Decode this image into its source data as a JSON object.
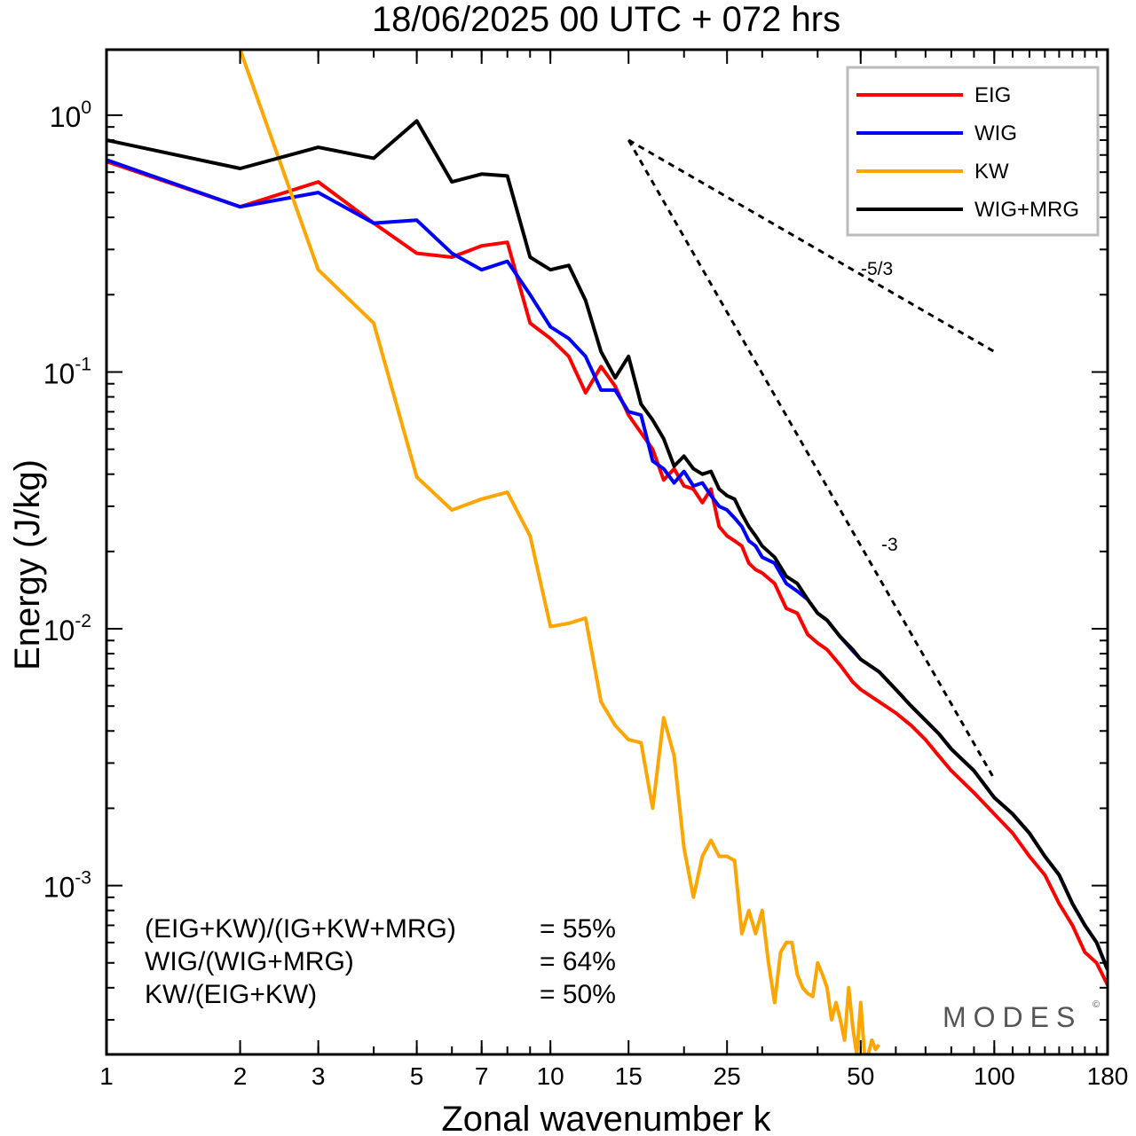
{
  "chart_data": {
    "type": "line",
    "title": "18/06/2025  00 UTC  + 072 hrs",
    "xlabel": "Zonal wavenumber k",
    "ylabel": "Energy (J/kg)",
    "xscale": "log",
    "yscale": "log",
    "xlim": [
      1,
      180
    ],
    "ylim": [
      0.00022,
      1.8
    ],
    "x_ticks": [
      1,
      2,
      3,
      5,
      7,
      10,
      15,
      25,
      50,
      100,
      180
    ],
    "y_ticks": [
      {
        "base": "10",
        "exp": "0",
        "value": 1
      },
      {
        "base": "10",
        "exp": "-1",
        "value": 0.1
      },
      {
        "base": "10",
        "exp": "-2",
        "value": 0.01
      },
      {
        "base": "10",
        "exp": "-3",
        "value": 0.001
      }
    ],
    "legend_position": "top-right",
    "grid": false,
    "series": [
      {
        "name": "EIG",
        "color": "#ff0000",
        "points": [
          [
            1,
            0.66
          ],
          [
            2,
            0.44
          ],
          [
            3,
            0.55
          ],
          [
            4,
            0.38
          ],
          [
            5,
            0.29
          ],
          [
            6,
            0.28
          ],
          [
            7,
            0.31
          ],
          [
            8,
            0.32
          ],
          [
            9,
            0.155
          ],
          [
            10,
            0.135
          ],
          [
            11,
            0.115
          ],
          [
            12,
            0.083
          ],
          [
            13,
            0.105
          ],
          [
            14,
            0.088
          ],
          [
            15,
            0.068
          ],
          [
            16,
            0.058
          ],
          [
            17,
            0.05
          ],
          [
            18,
            0.038
          ],
          [
            19,
            0.042
          ],
          [
            20,
            0.036
          ],
          [
            21,
            0.035
          ],
          [
            22,
            0.031
          ],
          [
            23,
            0.035
          ],
          [
            24,
            0.025
          ],
          [
            25,
            0.023
          ],
          [
            26,
            0.022
          ],
          [
            27,
            0.021
          ],
          [
            28,
            0.018
          ],
          [
            29,
            0.017
          ],
          [
            30,
            0.0165
          ],
          [
            32,
            0.015
          ],
          [
            34,
            0.012
          ],
          [
            36,
            0.0115
          ],
          [
            38,
            0.0095
          ],
          [
            40,
            0.0088
          ],
          [
            42,
            0.0083
          ],
          [
            45,
            0.0072
          ],
          [
            48,
            0.0062
          ],
          [
            50,
            0.0058
          ],
          [
            55,
            0.0052
          ],
          [
            60,
            0.0047
          ],
          [
            65,
            0.0042
          ],
          [
            70,
            0.0037
          ],
          [
            75,
            0.0032
          ],
          [
            80,
            0.0028
          ],
          [
            90,
            0.0023
          ],
          [
            100,
            0.0019
          ],
          [
            110,
            0.0016
          ],
          [
            120,
            0.0013
          ],
          [
            130,
            0.0011
          ],
          [
            140,
            0.00085
          ],
          [
            150,
            0.0007
          ],
          [
            160,
            0.00055
          ],
          [
            170,
            0.0005
          ],
          [
            180,
            0.00041
          ]
        ]
      },
      {
        "name": "WIG",
        "color": "#0000ff",
        "points": [
          [
            1,
            0.67
          ],
          [
            2,
            0.44
          ],
          [
            3,
            0.5
          ],
          [
            4,
            0.38
          ],
          [
            5,
            0.39
          ],
          [
            6,
            0.29
          ],
          [
            7,
            0.25
          ],
          [
            8,
            0.27
          ],
          [
            9,
            0.2
          ],
          [
            10,
            0.15
          ],
          [
            11,
            0.135
          ],
          [
            12,
            0.115
          ],
          [
            13,
            0.085
          ],
          [
            14,
            0.085
          ],
          [
            15,
            0.07
          ],
          [
            16,
            0.068
          ],
          [
            17,
            0.045
          ],
          [
            18,
            0.042
          ],
          [
            19,
            0.037
          ],
          [
            20,
            0.041
          ],
          [
            21,
            0.036
          ],
          [
            22,
            0.037
          ],
          [
            23,
            0.033
          ],
          [
            24,
            0.03
          ],
          [
            25,
            0.029
          ],
          [
            26,
            0.027
          ],
          [
            27,
            0.025
          ],
          [
            28,
            0.022
          ],
          [
            29,
            0.021
          ],
          [
            30,
            0.019
          ],
          [
            32,
            0.018
          ],
          [
            34,
            0.015
          ],
          [
            36,
            0.014
          ],
          [
            38,
            0.013
          ],
          [
            40,
            0.0115
          ],
          [
            42,
            0.0108
          ],
          [
            45,
            0.0093
          ],
          [
            48,
            0.0082
          ],
          [
            50,
            0.0076
          ],
          [
            55,
            0.0068
          ],
          [
            60,
            0.0058
          ],
          [
            65,
            0.005
          ],
          [
            70,
            0.0044
          ],
          [
            75,
            0.0039
          ],
          [
            80,
            0.0034
          ],
          [
            90,
            0.0028
          ],
          [
            100,
            0.0022
          ],
          [
            110,
            0.0019
          ],
          [
            120,
            0.0016
          ],
          [
            130,
            0.0013
          ],
          [
            140,
            0.0011
          ],
          [
            150,
            0.00085
          ],
          [
            160,
            0.0007
          ],
          [
            170,
            0.0006
          ],
          [
            180,
            0.00047
          ]
        ]
      },
      {
        "name": "KW",
        "color": "#ffa500",
        "points": [
          [
            2,
            1.8
          ],
          [
            3,
            0.25
          ],
          [
            4,
            0.155
          ],
          [
            5,
            0.039
          ],
          [
            6,
            0.029
          ],
          [
            7,
            0.032
          ],
          [
            8,
            0.034
          ],
          [
            9,
            0.023
          ],
          [
            10,
            0.0102
          ],
          [
            11,
            0.0105
          ],
          [
            12,
            0.011
          ],
          [
            13,
            0.0052
          ],
          [
            14,
            0.0042
          ],
          [
            15,
            0.0037
          ],
          [
            16,
            0.0036
          ],
          [
            17,
            0.002
          ],
          [
            18,
            0.0045
          ],
          [
            19,
            0.0032
          ],
          [
            20,
            0.0014
          ],
          [
            21,
            0.0009
          ],
          [
            22,
            0.0013
          ],
          [
            23,
            0.0015
          ],
          [
            24,
            0.0013
          ],
          [
            25,
            0.0013
          ],
          [
            26,
            0.00125
          ],
          [
            27,
            0.00065
          ],
          [
            28,
            0.0008
          ],
          [
            29,
            0.00065
          ],
          [
            30,
            0.0008
          ],
          [
            31,
            0.0005
          ],
          [
            32,
            0.00035
          ],
          [
            33,
            0.00055
          ],
          [
            34,
            0.0006
          ],
          [
            35,
            0.0006
          ],
          [
            36,
            0.00045
          ],
          [
            37,
            0.0004
          ],
          [
            38,
            0.00038
          ],
          [
            39,
            0.00037
          ],
          [
            40,
            0.0005
          ],
          [
            41,
            0.00045
          ],
          [
            42,
            0.0004
          ],
          [
            43,
            0.0003
          ],
          [
            44,
            0.00035
          ],
          [
            45,
            0.0003
          ],
          [
            46,
            0.00025
          ],
          [
            47,
            0.0004
          ],
          [
            48,
            0.00028
          ],
          [
            49,
            0.00022
          ],
          [
            50,
            0.00035
          ],
          [
            51,
            0.00022
          ],
          [
            52,
            0.00022
          ],
          [
            53,
            0.00025
          ],
          [
            54,
            0.00023
          ],
          [
            55,
            0.00024
          ]
        ]
      },
      {
        "name": "WIG+MRG",
        "color": "#000000",
        "points": [
          [
            1,
            0.8
          ],
          [
            2,
            0.62
          ],
          [
            3,
            0.75
          ],
          [
            4,
            0.68
          ],
          [
            5,
            0.95
          ],
          [
            6,
            0.55
          ],
          [
            7,
            0.59
          ],
          [
            8,
            0.58
          ],
          [
            9,
            0.28
          ],
          [
            10,
            0.25
          ],
          [
            11,
            0.26
          ],
          [
            12,
            0.19
          ],
          [
            13,
            0.12
          ],
          [
            14,
            0.095
          ],
          [
            15,
            0.115
          ],
          [
            16,
            0.075
          ],
          [
            17,
            0.065
          ],
          [
            18,
            0.055
          ],
          [
            19,
            0.043
          ],
          [
            20,
            0.047
          ],
          [
            21,
            0.042
          ],
          [
            22,
            0.04
          ],
          [
            23,
            0.041
          ],
          [
            24,
            0.035
          ],
          [
            25,
            0.033
          ],
          [
            26,
            0.032
          ],
          [
            27,
            0.028
          ],
          [
            28,
            0.025
          ],
          [
            29,
            0.023
          ],
          [
            30,
            0.021
          ],
          [
            32,
            0.019
          ],
          [
            34,
            0.016
          ],
          [
            36,
            0.015
          ],
          [
            38,
            0.013
          ],
          [
            40,
            0.0115
          ],
          [
            42,
            0.0108
          ],
          [
            45,
            0.0093
          ],
          [
            48,
            0.0083
          ],
          [
            50,
            0.0076
          ],
          [
            55,
            0.0068
          ],
          [
            60,
            0.0058
          ],
          [
            65,
            0.005
          ],
          [
            70,
            0.0044
          ],
          [
            75,
            0.0039
          ],
          [
            80,
            0.0034
          ],
          [
            90,
            0.0028
          ],
          [
            100,
            0.0022
          ],
          [
            110,
            0.0019
          ],
          [
            120,
            0.0016
          ],
          [
            130,
            0.0013
          ],
          [
            140,
            0.0011
          ],
          [
            150,
            0.00085
          ],
          [
            160,
            0.0007
          ],
          [
            170,
            0.0006
          ],
          [
            180,
            0.00047
          ]
        ]
      }
    ],
    "reference_lines": [
      {
        "label": "-5/3",
        "x": [
          15,
          100
        ],
        "y": [
          0.8,
          0.12
        ]
      },
      {
        "label": "-3",
        "x": [
          15,
          100
        ],
        "y": [
          0.8,
          0.0026
        ]
      }
    ],
    "annotations": [
      {
        "text": "(EIG+KW)/(IG+KW+MRG)",
        "value": "= 55%"
      },
      {
        "text": "WIG/(WIG+MRG)",
        "value": "= 64%"
      },
      {
        "text": "KW/(EIG+KW)",
        "value": "= 50%"
      }
    ],
    "watermark": "MODES",
    "watermark_mark": "©"
  }
}
